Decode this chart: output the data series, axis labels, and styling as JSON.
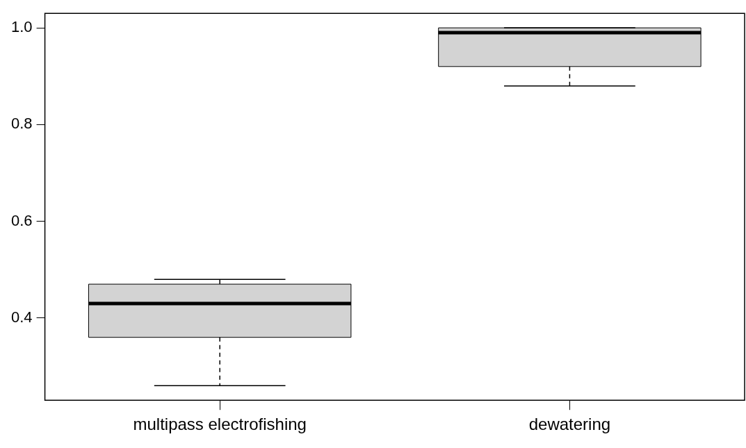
{
  "chart_data": {
    "type": "box",
    "categories": [
      "multipass electrofishing",
      "dewatering"
    ],
    "boxes": [
      {
        "low": 0.26,
        "q1": 0.36,
        "median": 0.43,
        "q3": 0.47,
        "high": 0.48
      },
      {
        "low": 0.88,
        "q1": 0.92,
        "median": 0.99,
        "q3": 1.0,
        "high": 1.0
      }
    ],
    "color": "#d3d3d3",
    "ylim": [
      0.23,
      1.03
    ],
    "yticks": [
      0.4,
      0.6,
      0.8,
      {
        "value": 1,
        "label": "1.0"
      }
    ],
    "grid": false,
    "legend": false
  }
}
